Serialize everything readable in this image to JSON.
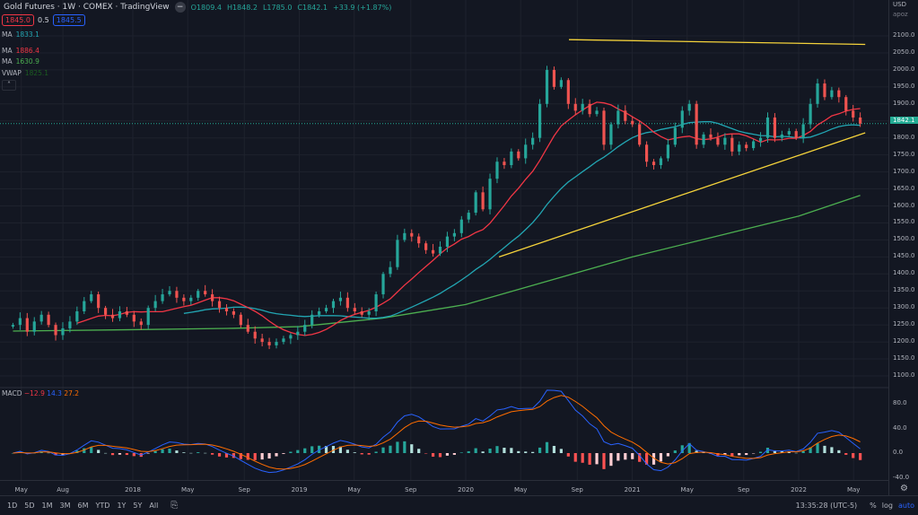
{
  "header": {
    "title": "Gold Futures · 1W · COMEX · TradingView",
    "collapse_icon": "minus-icon",
    "open": "O1809.4",
    "high": "H1848.2",
    "low": "L1785.0",
    "close": "C1842.1",
    "change": "+33.9 (+1.87%)"
  },
  "order": {
    "sell": "1845.0",
    "spread": "0.5",
    "buy": "1845.5"
  },
  "indicators": [
    {
      "name": "MA",
      "value": "1833.1",
      "color": "#22a6b3"
    },
    {
      "name": "MA",
      "value": "1886.4",
      "color": "#f23645"
    },
    {
      "name": "MA",
      "value": "1630.9",
      "color": "#4caf50"
    },
    {
      "name": "VWAP",
      "value": "1825.1",
      "color": "#1b5e20"
    }
  ],
  "expand_icon": "chevron-up-icon",
  "axis": {
    "currency": "USD",
    "mode": "apoz",
    "price_ticks": [
      "2100.0",
      "2050.0",
      "2000.0",
      "1950.0",
      "1900.0",
      "1800.0",
      "1750.0",
      "1700.0",
      "1650.0",
      "1600.0",
      "1550.0",
      "1500.0",
      "1450.0",
      "1400.0",
      "1350.0",
      "1300.0",
      "1250.0",
      "1200.0",
      "1150.0",
      "1100.0"
    ],
    "last_price": "1842.1",
    "macd_ticks": [
      "80.0",
      "40.0",
      "0.0",
      "-40.0"
    ]
  },
  "macd": {
    "name": "MACD",
    "hist": "−12.9",
    "macd": "14.3",
    "signal": "27.2"
  },
  "time_labels": [
    {
      "t": "May",
      "yr": 2017.33
    },
    {
      "t": "Aug",
      "yr": 2017.58
    },
    {
      "t": "2018",
      "yr": 2018.0
    },
    {
      "t": "May",
      "yr": 2018.33
    },
    {
      "t": "Sep",
      "yr": 2018.67
    },
    {
      "t": "2019",
      "yr": 2019.0
    },
    {
      "t": "May",
      "yr": 2019.33
    },
    {
      "t": "Sep",
      "yr": 2019.67
    },
    {
      "t": "2020",
      "yr": 2020.0
    },
    {
      "t": "May",
      "yr": 2020.33
    },
    {
      "t": "Sep",
      "yr": 2020.67
    },
    {
      "t": "2021",
      "yr": 2021.0
    },
    {
      "t": "May",
      "yr": 2021.33
    },
    {
      "t": "Sep",
      "yr": 2021.67
    },
    {
      "t": "2022",
      "yr": 2022.0
    },
    {
      "t": "May",
      "yr": 2022.33
    }
  ],
  "bottom": {
    "ranges": [
      "1D",
      "5D",
      "1M",
      "3M",
      "6M",
      "YTD",
      "1Y",
      "5Y",
      "All"
    ],
    "goto_icon": "calendar-goto-icon",
    "clock": "13:35:28 (UTC-5)",
    "percent": "%",
    "log": "log",
    "auto": "auto"
  },
  "settings_icon": "gear-icon",
  "chart_data": {
    "type": "candlestick",
    "title": "Gold Futures 1W COMEX",
    "x_range": [
      2017.28,
      2022.4
    ],
    "ylim": [
      1100,
      2100
    ],
    "close_series_start": 2017.28,
    "close_series_end": 2022.37,
    "closes": [
      1250,
      1270,
      1230,
      1260,
      1280,
      1250,
      1220,
      1240,
      1260,
      1290,
      1320,
      1340,
      1300,
      1280,
      1270,
      1290,
      1280,
      1260,
      1250,
      1300,
      1320,
      1340,
      1350,
      1330,
      1320,
      1330,
      1350,
      1340,
      1320,
      1300,
      1290,
      1280,
      1250,
      1230,
      1210,
      1200,
      1190,
      1200,
      1210,
      1220,
      1230,
      1250,
      1280,
      1290,
      1300,
      1320,
      1330,
      1300,
      1290,
      1280,
      1290,
      1340,
      1400,
      1420,
      1500,
      1520,
      1510,
      1490,
      1470,
      1460,
      1480,
      1510,
      1520,
      1560,
      1580,
      1640,
      1590,
      1680,
      1730,
      1720,
      1760,
      1740,
      1780,
      1800,
      1900,
      2000,
      1950,
      1970,
      1900,
      1880,
      1900,
      1870,
      1880,
      1780,
      1840,
      1880,
      1850,
      1840,
      1780,
      1730,
      1720,
      1740,
      1780,
      1830,
      1880,
      1900,
      1780,
      1810,
      1800,
      1780,
      1800,
      1760,
      1780,
      1770,
      1790,
      1800,
      1860,
      1800,
      1810,
      1820,
      1800,
      1840,
      1900,
      1960,
      1920,
      1940,
      1920,
      1880,
      1860,
      1842.1
    ],
    "ma200": [
      [
        2017.28,
        1232
      ],
      [
        2018.0,
        1236
      ],
      [
        2018.6,
        1240
      ],
      [
        2019.0,
        1245
      ],
      [
        2019.5,
        1270
      ],
      [
        2020.0,
        1310
      ],
      [
        2020.5,
        1380
      ],
      [
        2021.0,
        1450
      ],
      [
        2021.5,
        1510
      ],
      [
        2022.0,
        1570
      ],
      [
        2022.37,
        1631
      ]
    ],
    "trendlines": [
      {
        "from": [
          2020.62,
          2089
        ],
        "to": [
          2022.4,
          2075
        ]
      },
      {
        "from": [
          2020.2,
          1450
        ],
        "to": [
          2022.4,
          1815
        ]
      }
    ],
    "macd_ylim": [
      -40,
      100
    ]
  }
}
